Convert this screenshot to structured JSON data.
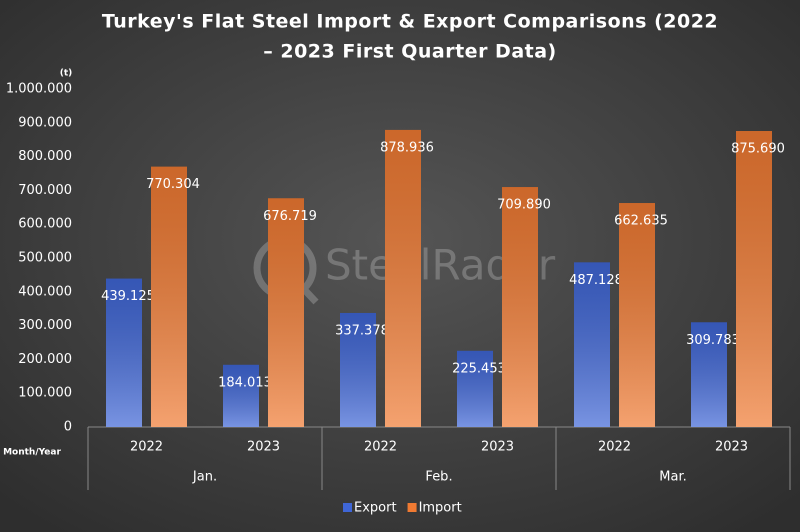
{
  "chart_data": {
    "type": "bar",
    "title": [
      "Turkey's Flat Steel Import & Export Comparisons (2022",
      "– 2023 First Quarter Data)"
    ],
    "y_unit": "(t)",
    "x_label": "Month/Year",
    "watermark": "SteelRadar",
    "categories": [
      "2022",
      "2023",
      "2022",
      "2023",
      "2022",
      "2023"
    ],
    "groups": [
      "Jan.",
      "Feb.",
      "Mar."
    ],
    "series": [
      {
        "name": "Export",
        "color": "#3f66d6",
        "values": [
          439125,
          184013,
          337378,
          225453,
          487128,
          309783
        ],
        "value_labels": [
          "439.125",
          "184.013",
          "337.378",
          "225.453",
          "487.128",
          "309.783"
        ]
      },
      {
        "name": "Import",
        "color": "#f07a32",
        "values": [
          770304,
          676719,
          878936,
          709890,
          662635,
          875690
        ],
        "value_labels": [
          "770.304",
          "676.719",
          "878.936",
          "709.890",
          "662.635",
          "875.690"
        ]
      }
    ],
    "ylim": [
      0,
      1000000
    ],
    "yticks": [
      0,
      {
        "value": 100000,
        "label": "100.000"
      },
      {
        "value": 200000,
        "label": "200.000"
      },
      {
        "value": 300000,
        "label": "300.000"
      },
      {
        "value": 400000,
        "label": "400.000"
      },
      {
        "value": 500000,
        "label": "500.000"
      },
      {
        "value": 600000,
        "label": "600.000"
      },
      {
        "value": 700000,
        "label": "700.000"
      },
      {
        "value": 800000,
        "label": "800.000"
      },
      {
        "value": 900000,
        "label": "900.000"
      },
      {
        "value": 1000000,
        "label": "1.000.000"
      }
    ],
    "grid": false,
    "legend": "bottom"
  }
}
